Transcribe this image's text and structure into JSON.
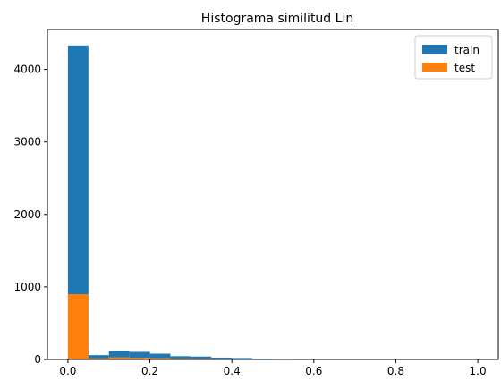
{
  "chart_data": {
    "type": "bar",
    "title": "Histograma similitud Lin",
    "xlabel": "",
    "ylabel": "",
    "xlim": [
      -0.05,
      1.05
    ],
    "ylim": [
      0,
      4550
    ],
    "xticks": [
      0.0,
      0.2,
      0.4,
      0.6,
      0.8,
      1.0
    ],
    "xtick_labels": [
      "0.0",
      "0.2",
      "0.4",
      "0.6",
      "0.8",
      "1.0"
    ],
    "yticks": [
      0,
      1000,
      2000,
      3000,
      4000
    ],
    "ytick_labels": [
      "0",
      "1000",
      "2000",
      "3000",
      "4000"
    ],
    "grid": false,
    "legend_position": "top-right",
    "bin_edges": [
      0.0,
      0.05,
      0.1,
      0.15,
      0.2,
      0.25,
      0.3,
      0.35,
      0.4,
      0.45,
      0.5,
      0.55,
      0.6,
      0.65,
      0.7,
      0.75,
      0.8,
      0.85,
      0.9,
      0.95,
      1.0
    ],
    "series": [
      {
        "name": "train",
        "color": "#1f77b4",
        "values": [
          4330,
          60,
          120,
          105,
          80,
          45,
          40,
          25,
          20,
          10,
          8,
          0,
          0,
          0,
          0,
          0,
          0,
          0,
          0,
          0
        ]
      },
      {
        "name": "test",
        "color": "#ff7f0e",
        "values": [
          900,
          15,
          30,
          25,
          20,
          12,
          10,
          6,
          5,
          2,
          2,
          0,
          0,
          0,
          0,
          0,
          0,
          0,
          0,
          0
        ]
      }
    ]
  }
}
